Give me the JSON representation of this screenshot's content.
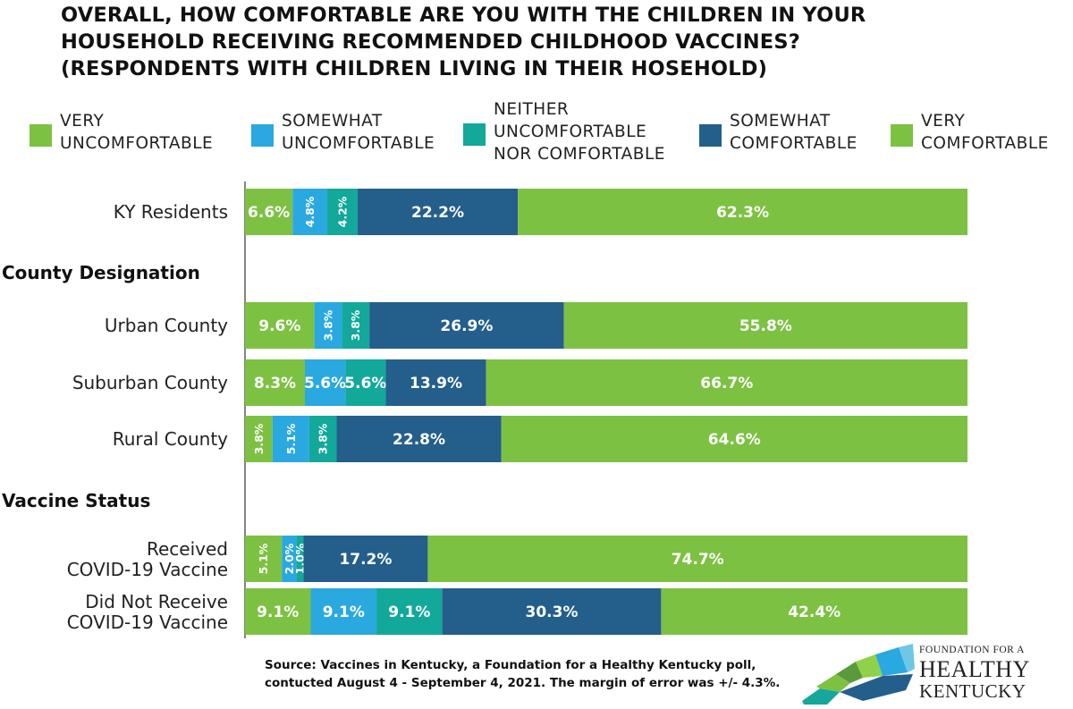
{
  "title_lines": [
    "OVERALL, HOW COMFORTABLE ARE YOU WITH THE CHILDREN IN YOUR",
    "HOUSEHOLD RECEIVING RECOMMENDED CHILDHOOD VACCINES?",
    "(RESPONDENTS WITH CHILDREN LIVING IN THEIR HOSEHOLD)"
  ],
  "legend": [
    {
      "lines": [
        "VERY",
        "UNCOMFORTABLE"
      ],
      "color": "#7dc142"
    },
    {
      "lines": [
        "SOMEWHAT",
        "UNCOMFORTABLE"
      ],
      "color": "#2aa8e0"
    },
    {
      "lines": [
        "NEITHER",
        "UNCOMFORTABLE",
        "NOR COMFORTABLE"
      ],
      "color": "#12a89a"
    },
    {
      "lines": [
        "SOMEWHAT",
        "COMFORTABLE"
      ],
      "color": "#245e8b"
    },
    {
      "lines": [
        "VERY",
        "COMFORTABLE"
      ],
      "color": "#7dc142"
    }
  ],
  "chart_data": {
    "type": "bar",
    "orientation": "horizontal",
    "stacked": true,
    "series": [
      {
        "name": "VERY UNCOMFORTABLE",
        "values": [
          6.6,
          9.6,
          8.3,
          3.8,
          5.1,
          9.1
        ]
      },
      {
        "name": "SOMEWHAT UNCOMFORTABLE",
        "values": [
          4.8,
          3.8,
          5.6,
          5.1,
          2.0,
          9.1
        ]
      },
      {
        "name": "NEITHER UNCOMFORTABLE NOR COMFORTABLE",
        "values": [
          4.2,
          3.8,
          5.6,
          3.8,
          1.0,
          9.1
        ]
      },
      {
        "name": "SOMEWHAT COMFORTABLE",
        "values": [
          22.2,
          26.9,
          13.9,
          22.8,
          17.2,
          30.3
        ]
      },
      {
        "name": "VERY COMFORTABLE",
        "values": [
          62.3,
          55.8,
          66.7,
          64.6,
          74.7,
          42.4
        ]
      }
    ],
    "rows": [
      {
        "label": [
          "KY Residents"
        ],
        "group": null
      },
      {
        "label": [
          "Urban County"
        ],
        "group": "County Designation"
      },
      {
        "label": [
          "Suburban County"
        ],
        "group": "County Designation"
      },
      {
        "label": [
          "Rural County"
        ],
        "group": "County Designation"
      },
      {
        "label": [
          "Received",
          "COVID-19 Vaccine"
        ],
        "group": "Vaccine Status"
      },
      {
        "label": [
          "Did Not Receive",
          "COVID-19 Vaccine"
        ],
        "group": "Vaccine Status"
      }
    ],
    "groups": [
      "County Designation",
      "Vaccine Status"
    ],
    "data_label_format": "{v}%",
    "xlim": [
      0,
      100
    ],
    "legend_position": "top",
    "grid": false
  },
  "source": {
    "line1": "Source: Vaccines in Kentucky, a Foundation for a Healthy Kentucky poll,",
    "line2": "contucted August 4 - September 4, 2021.  The margin of error was +/- 4.3%."
  },
  "logo": {
    "line1": "FOUNDATION FOR A",
    "line2": "HEALTHY",
    "line3": "KENTUCKY"
  }
}
